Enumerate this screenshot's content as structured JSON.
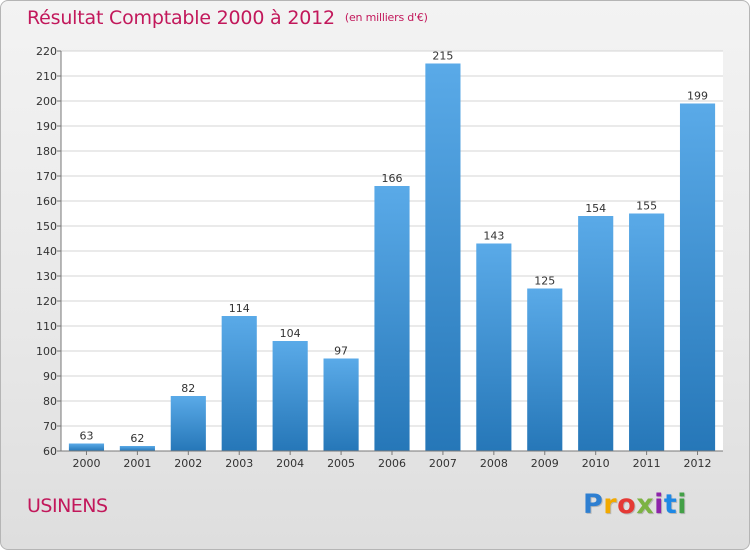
{
  "header": {
    "title": "Résultat Comptable 2000 à 2012",
    "subtitle": "(en milliers d'€)"
  },
  "commune": "USINENS",
  "brand": {
    "letters": [
      "P",
      "r",
      "o",
      "x",
      "i",
      "t",
      "i"
    ],
    "colors": [
      "#2e7fd1",
      "#f2a900",
      "#e53935",
      "#7cb342",
      "#8e24aa",
      "#1e88e5",
      "#43a047"
    ]
  },
  "colors": {
    "bar_light": "#5aaae8",
    "bar_dark": "#2677b8",
    "accent": "#c2185b",
    "grid": "#d4d4d4",
    "plot_bg": "#ffffff"
  },
  "chart_data": {
    "type": "bar",
    "categories": [
      "2000",
      "2001",
      "2002",
      "2003",
      "2004",
      "2005",
      "2006",
      "2007",
      "2008",
      "2009",
      "2010",
      "2011",
      "2012"
    ],
    "values": [
      63,
      62,
      82,
      114,
      104,
      97,
      166,
      215,
      143,
      125,
      154,
      155,
      199
    ],
    "data_labels": [
      "63",
      "62",
      "82",
      "114",
      "104",
      "97",
      "166",
      "215",
      "143",
      "125",
      "154",
      "155",
      "199"
    ],
    "title": "Résultat Comptable 2000 à 2012",
    "subtitle": "(en milliers d'€)",
    "xlabel": "",
    "ylabel": "",
    "ylim": [
      60,
      220
    ],
    "yticks": [
      60,
      70,
      80,
      90,
      100,
      110,
      120,
      130,
      140,
      150,
      160,
      170,
      180,
      190,
      200,
      210,
      220
    ],
    "grid": true,
    "legend": "none"
  }
}
